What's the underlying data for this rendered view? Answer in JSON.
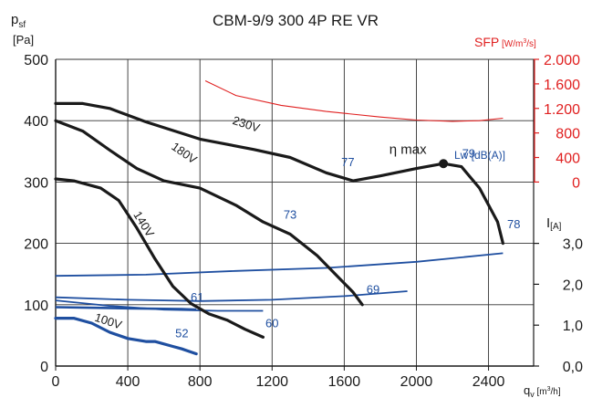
{
  "chart_data": {
    "type": "line",
    "title": "CBM-9/9 300 4P RE VR",
    "colors": {
      "curve": "#1a1a1a",
      "blue": "#1f4fa0",
      "red": "#e02020",
      "grid": "#333333",
      "label_blue": "#1f4fa0"
    },
    "y_axis_left": {
      "label_main": "p",
      "label_sub": "sf",
      "unit": "[Pa]",
      "range": [
        0,
        500
      ],
      "ticks": [
        0,
        100,
        200,
        300,
        400,
        500
      ],
      "tick_labels": [
        "0",
        "100",
        "200",
        "300",
        "400",
        "500"
      ]
    },
    "x_axis": {
      "label_main": "q",
      "label_sub": "v",
      "unit_prefix": " [m",
      "unit_sup": "3",
      "unit_suffix": "/h]",
      "range": [
        0,
        2650
      ],
      "ticks": [
        0,
        400,
        800,
        1200,
        1600,
        2000,
        2400
      ],
      "tick_labels": [
        "0",
        "400",
        "800",
        "1200",
        "1600",
        "2000",
        "2400"
      ]
    },
    "y_axis_sfp": {
      "label": "SFP",
      "unit_prefix": " [W/m",
      "unit_sup": "3",
      "unit_suffix": "/s]",
      "ticks": [
        0,
        400,
        800,
        1200,
        1600,
        2000
      ],
      "tick_labels": [
        "0",
        "400",
        "800",
        "1.200",
        "1.600",
        "2.000"
      ],
      "range_pa_equiv": [
        300,
        500
      ]
    },
    "y_axis_current": {
      "label_main": "I",
      "label_sub": "[A]",
      "ticks": [
        0,
        1,
        2,
        3
      ],
      "tick_labels": [
        "0,0",
        "1,0",
        "2,0",
        "3,0"
      ],
      "range_pa_equiv": [
        0,
        200
      ]
    },
    "pressure_curves": [
      {
        "name": "230V",
        "points": [
          [
            0,
            428
          ],
          [
            150,
            428
          ],
          [
            300,
            420
          ],
          [
            500,
            398
          ],
          [
            800,
            370
          ],
          [
            1100,
            353
          ],
          [
            1300,
            340
          ],
          [
            1500,
            315
          ],
          [
            1650,
            302
          ],
          [
            1800,
            310
          ],
          [
            2000,
            322
          ],
          [
            2150,
            330
          ],
          [
            2250,
            325
          ],
          [
            2350,
            290
          ],
          [
            2450,
            235
          ],
          [
            2480,
            200
          ]
        ]
      },
      {
        "name": "180V",
        "points": [
          [
            0,
            400
          ],
          [
            150,
            383
          ],
          [
            300,
            352
          ],
          [
            450,
            322
          ],
          [
            600,
            302
          ],
          [
            800,
            290
          ],
          [
            1000,
            262
          ],
          [
            1150,
            235
          ],
          [
            1300,
            215
          ],
          [
            1450,
            180
          ],
          [
            1550,
            150
          ],
          [
            1650,
            120
          ],
          [
            1700,
            100
          ]
        ]
      },
      {
        "name": "140V",
        "points": [
          [
            0,
            305
          ],
          [
            100,
            302
          ],
          [
            250,
            290
          ],
          [
            350,
            270
          ],
          [
            450,
            225
          ],
          [
            550,
            175
          ],
          [
            650,
            130
          ],
          [
            750,
            102
          ],
          [
            850,
            85
          ],
          [
            950,
            75
          ],
          [
            1050,
            60
          ],
          [
            1150,
            47
          ]
        ]
      },
      {
        "name": "100V",
        "points": [
          [
            0,
            78
          ],
          [
            100,
            78
          ],
          [
            200,
            70
          ],
          [
            300,
            55
          ],
          [
            400,
            45
          ],
          [
            500,
            40
          ],
          [
            550,
            40
          ],
          [
            650,
            32
          ],
          [
            700,
            28
          ],
          [
            780,
            20
          ]
        ]
      }
    ],
    "curve_labels": [
      {
        "text": "230V",
        "x": 1050,
        "y": 388,
        "rotate": 18
      },
      {
        "text": "180V",
        "x": 700,
        "y": 342,
        "rotate": 35
      },
      {
        "text": "140V",
        "x": 470,
        "y": 228,
        "rotate": 58
      },
      {
        "text": "100V",
        "x": 285,
        "y": 67,
        "rotate": 18
      }
    ],
    "current_curves": [
      {
        "name": "230V",
        "points": [
          [
            0,
            147
          ],
          [
            500,
            149
          ],
          [
            1000,
            155
          ],
          [
            1500,
            160
          ],
          [
            2000,
            170
          ],
          [
            2480,
            184
          ]
        ]
      },
      {
        "name": "180V",
        "points": [
          [
            0,
            112
          ],
          [
            400,
            108
          ],
          [
            800,
            106
          ],
          [
            1200,
            108
          ],
          [
            1600,
            114
          ],
          [
            1950,
            122
          ]
        ]
      },
      {
        "name": "140V",
        "points": [
          [
            0,
            107
          ],
          [
            300,
            98
          ],
          [
            600,
            92
          ],
          [
            900,
            90
          ],
          [
            1150,
            90
          ]
        ]
      },
      {
        "name": "100V",
        "points": [
          [
            0,
            96
          ],
          [
            400,
            94
          ],
          [
            700,
            93
          ],
          [
            780,
            92
          ]
        ]
      }
    ],
    "efficiency_labels": [
      {
        "text": "77",
        "x": 1620,
        "y": 326
      },
      {
        "text": "79",
        "x": 2290,
        "y": 340
      },
      {
        "text": "78",
        "x": 2540,
        "y": 225
      },
      {
        "text": "73",
        "x": 1300,
        "y": 240
      },
      {
        "text": "69",
        "x": 1760,
        "y": 118
      },
      {
        "text": "61",
        "x": 785,
        "y": 106
      },
      {
        "text": "60",
        "x": 1200,
        "y": 63
      },
      {
        "text": "52",
        "x": 700,
        "y": 47
      }
    ],
    "lw_label": "Lw [dB(A)]",
    "eta_max": {
      "label": "η max",
      "x": 2150,
      "y": 330,
      "label_x": 1850,
      "label_y": 346
    },
    "sfp_curve": {
      "points": [
        [
          830,
          465
        ],
        [
          1000,
          441
        ],
        [
          1250,
          425
        ],
        [
          1500,
          415
        ],
        [
          1800,
          406
        ],
        [
          2000,
          401
        ],
        [
          2200,
          399
        ],
        [
          2350,
          400
        ],
        [
          2480,
          404
        ]
      ]
    }
  }
}
